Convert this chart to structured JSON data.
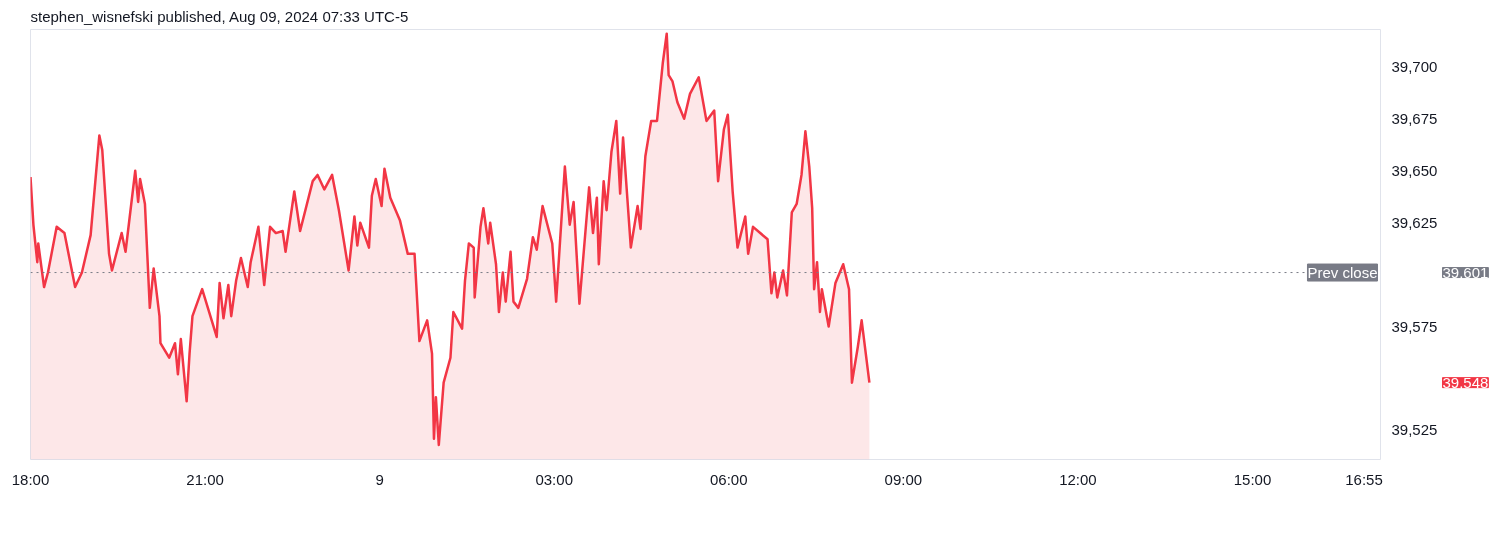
{
  "chart_data": {
    "type": "area",
    "title": "stephen_wisnefski published, Aug 09, 2024 07:33 UTC-5",
    "x": [
      "2024-08-08T18:00",
      "2024-08-08T18:03",
      "2024-08-08T18:07",
      "2024-08-08T18:08",
      "2024-08-08T18:14",
      "2024-08-08T18:18",
      "2024-08-08T18:27",
      "2024-08-08T18:35",
      "2024-08-08T18:46",
      "2024-08-08T18:53",
      "2024-08-08T19:02",
      "2024-08-08T19:11",
      "2024-08-08T19:14",
      "2024-08-08T19:21",
      "2024-08-08T19:24",
      "2024-08-08T19:34",
      "2024-08-08T19:38",
      "2024-08-08T19:48",
      "2024-08-08T19:51",
      "2024-08-08T19:53",
      "2024-08-08T19:58",
      "2024-08-08T20:03",
      "2024-08-08T20:07",
      "2024-08-08T20:13",
      "2024-08-08T20:14",
      "2024-08-08T20:23",
      "2024-08-08T20:29",
      "2024-08-08T20:32",
      "2024-08-08T20:35",
      "2024-08-08T20:41",
      "2024-08-08T20:44",
      "2024-08-08T20:47",
      "2024-08-08T20:57",
      "2024-08-08T21:12",
      "2024-08-08T21:15",
      "2024-08-08T21:19",
      "2024-08-08T21:24",
      "2024-08-08T21:27",
      "2024-08-08T21:32",
      "2024-08-08T21:37",
      "2024-08-08T21:44",
      "2024-08-08T21:47",
      "2024-08-08T21:55",
      "2024-08-08T22:01",
      "2024-08-08T22:07",
      "2024-08-08T22:13",
      "2024-08-08T22:20",
      "2024-08-08T22:23",
      "2024-08-08T22:32",
      "2024-08-08T22:38",
      "2024-08-08T22:51",
      "2024-08-08T22:56",
      "2024-08-08T23:03",
      "2024-08-08T23:11",
      "2024-08-08T23:18",
      "2024-08-08T23:28",
      "2024-08-08T23:34",
      "2024-08-08T23:37",
      "2024-08-08T23:40",
      "2024-08-08T23:49",
      "2024-08-08T23:52",
      "2024-08-08T23:56",
      "2024-08-09T00:02",
      "2024-08-09T00:05",
      "2024-08-09T00:11",
      "2024-08-09T00:21",
      "2024-08-09T00:29",
      "2024-08-09T00:36",
      "2024-08-09T00:41",
      "2024-08-09T00:49",
      "2024-08-09T00:54",
      "2024-08-09T00:56",
      "2024-08-09T00:58",
      "2024-08-09T01:01",
      "2024-08-09T01:06",
      "2024-08-09T01:13",
      "2024-08-09T01:16",
      "2024-08-09T01:25",
      "2024-08-09T01:28",
      "2024-08-09T01:32",
      "2024-08-09T01:37",
      "2024-08-09T01:38",
      "2024-08-09T01:44",
      "2024-08-09T01:47",
      "2024-08-09T01:52",
      "2024-08-09T01:54",
      "2024-08-09T02:00",
      "2024-08-09T02:03",
      "2024-08-09T02:07",
      "2024-08-09T02:10",
      "2024-08-09T02:15",
      "2024-08-09T02:18",
      "2024-08-09T02:23",
      "2024-08-09T02:32",
      "2024-08-09T02:38",
      "2024-08-09T02:42",
      "2024-08-09T02:48",
      "2024-08-09T02:58",
      "2024-08-09T03:02",
      "2024-08-09T03:11",
      "2024-08-09T03:16",
      "2024-08-09T03:20",
      "2024-08-09T03:26",
      "2024-08-09T03:36",
      "2024-08-09T03:40",
      "2024-08-09T03:44",
      "2024-08-09T03:46",
      "2024-08-09T03:51",
      "2024-08-09T03:54",
      "2024-08-09T03:59",
      "2024-08-09T04:04",
      "2024-08-09T04:08",
      "2024-08-09T04:11",
      "2024-08-09T04:19",
      "2024-08-09T04:26",
      "2024-08-09T04:29",
      "2024-08-09T04:34",
      "2024-08-09T04:40",
      "2024-08-09T04:46",
      "2024-08-09T04:52",
      "2024-08-09T04:56",
      "2024-08-09T04:58",
      "2024-08-09T05:02",
      "2024-08-09T05:07",
      "2024-08-09T05:14",
      "2024-08-09T05:20",
      "2024-08-09T05:29",
      "2024-08-09T05:37",
      "2024-08-09T05:45",
      "2024-08-09T05:49",
      "2024-08-09T05:55",
      "2024-08-09T05:59",
      "2024-08-09T06:04",
      "2024-08-09T06:09",
      "2024-08-09T06:17",
      "2024-08-09T06:20",
      "2024-08-09T06:25",
      "2024-08-09T06:40",
      "2024-08-09T06:44",
      "2024-08-09T06:47",
      "2024-08-09T06:50",
      "2024-08-09T06:56",
      "2024-08-09T07:00",
      "2024-08-09T07:05",
      "2024-08-09T07:10",
      "2024-08-09T07:15",
      "2024-08-09T07:19",
      "2024-08-09T07:23",
      "2024-08-09T07:26",
      "2024-08-09T07:28",
      "2024-08-09T07:31",
      "2024-08-09T07:34",
      "2024-08-09T07:36",
      "2024-08-09T07:43",
      "2024-08-09T07:50",
      "2024-08-09T07:58",
      "2024-08-09T08:04",
      "2024-08-09T08:07",
      "2024-08-09T08:13",
      "2024-08-09T08:17",
      "2024-08-09T08:25"
    ],
    "series": [
      {
        "color": "#f23645",
        "values": [
          39647,
          39624,
          39606,
          39615,
          39594,
          39601,
          39623,
          39620,
          39594,
          39601,
          39619,
          39667,
          39660,
          39610,
          39602,
          39620,
          39611,
          39650,
          39635,
          39646,
          39634,
          39584,
          39603,
          39580,
          39567,
          39560,
          39567,
          39552,
          39569,
          39539,
          39562,
          39580,
          39593,
          39570,
          39596,
          39579,
          39595,
          39580,
          39597,
          39608,
          39594,
          39606,
          39623,
          39595,
          39623,
          39620,
          39621,
          39611,
          39640,
          39621,
          39645,
          39648,
          39641,
          39648,
          39631,
          39602,
          39628,
          39614,
          39625,
          39613,
          39638,
          39646,
          39633,
          39651,
          39637,
          39626,
          39610,
          39610,
          39568,
          39578,
          39562,
          39521,
          39541,
          39518,
          39548,
          39560,
          39582,
          39574,
          39597,
          39615,
          39613,
          39589,
          39623,
          39632,
          39615,
          39625,
          39605,
          39582,
          39601,
          39587,
          39611,
          39587,
          39584,
          39598,
          39618,
          39612,
          39633,
          39615,
          39587,
          39652,
          39624,
          39635,
          39586,
          39642,
          39620,
          39637,
          39605,
          39645,
          39631,
          39659,
          39674,
          39639,
          39666,
          39613,
          39633,
          39622,
          39657,
          39674,
          39674,
          39702,
          39716,
          39696,
          39693,
          39683,
          39675,
          39687,
          39695,
          39674,
          39679,
          39645,
          39670,
          39677,
          39640,
          39613,
          39628,
          39610,
          39623,
          39617,
          39591,
          39601,
          39589,
          39602,
          39590,
          39630,
          39634,
          39648,
          39669,
          39652,
          39632,
          39593,
          39606,
          39582,
          39593,
          39575,
          39596,
          39605,
          39593,
          39548,
          39565,
          39578,
          39548
        ]
      }
    ],
    "xlim": [
      "2024-08-08T18:00",
      "2024-08-09T17:12"
    ],
    "xticks": [
      {
        "value": "2024-08-08T18:00",
        "label": "18:00"
      },
      {
        "value": "2024-08-08T21:00",
        "label": "21:00"
      },
      {
        "value": "2024-08-09T00:00",
        "label": "9"
      },
      {
        "value": "2024-08-09T03:00",
        "label": "03:00"
      },
      {
        "value": "2024-08-09T06:00",
        "label": "06:00"
      },
      {
        "value": "2024-08-09T09:00",
        "label": "09:00"
      },
      {
        "value": "2024-08-09T12:00",
        "label": "12:00"
      },
      {
        "value": "2024-08-09T15:00",
        "label": "15:00"
      },
      {
        "value": "2024-08-09T16:55",
        "label": "16:55"
      }
    ],
    "ylim": [
      39511,
      39718
    ],
    "yticks": [
      {
        "value": 39525,
        "label": "39,525"
      },
      {
        "value": 39575,
        "label": "39,575"
      },
      {
        "value": 39625,
        "label": "39,625"
      },
      {
        "value": 39650,
        "label": "39,650"
      },
      {
        "value": 39675,
        "label": "39,675"
      },
      {
        "value": 39700,
        "label": "39,700"
      }
    ],
    "ref_lines": [
      {
        "axis": "y",
        "value": 39601,
        "label": "Prev close",
        "color": "#787b86",
        "line_style": "dotted"
      }
    ],
    "annotations": [
      "39,601",
      "39,548"
    ],
    "grid": false
  }
}
